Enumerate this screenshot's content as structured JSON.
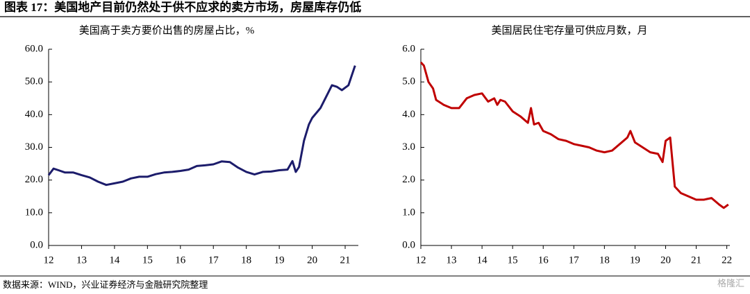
{
  "title": "图表 17：美国地产目前仍然处于供不应求的卖方市场，房屋库存仍低",
  "source": "数据来源：WIND，兴业证券经济与金融研究院整理",
  "watermark": "格隆汇",
  "chart_data": [
    {
      "type": "line",
      "title": "美国高于卖方要价出售的房屋占比，%",
      "xlim": [
        12,
        21.4
      ],
      "xticks": [
        12,
        13,
        14,
        15,
        16,
        17,
        18,
        19,
        20,
        21
      ],
      "ylim": [
        0,
        60
      ],
      "yticks": [
        {
          "value": 0,
          "label": "0.0"
        },
        {
          "value": 10,
          "label": "10.0"
        },
        {
          "value": 20,
          "label": "20.0"
        },
        {
          "value": 30,
          "label": "30.0"
        },
        {
          "value": 40,
          "label": "40.0"
        },
        {
          "value": 50,
          "label": "50.0"
        },
        {
          "value": 60,
          "label": "60.0"
        }
      ],
      "x": [
        12.0,
        12.15,
        12.3,
        12.5,
        12.75,
        13.0,
        13.25,
        13.5,
        13.75,
        14.0,
        14.25,
        14.5,
        14.75,
        15.0,
        15.25,
        15.5,
        15.75,
        16.0,
        16.25,
        16.5,
        16.75,
        17.0,
        17.25,
        17.5,
        17.75,
        18.0,
        18.25,
        18.5,
        18.75,
        19.0,
        19.25,
        19.4,
        19.5,
        19.6,
        19.75,
        19.9,
        20.0,
        20.25,
        20.5,
        20.6,
        20.75,
        20.9,
        21.1,
        21.3
      ],
      "series": [
        {
          "color": "#1c1c6b",
          "values": [
            21.5,
            23.5,
            23,
            22.3,
            22.3,
            21.5,
            20.8,
            19.5,
            18.5,
            19,
            19.5,
            20.5,
            21,
            21,
            21.8,
            22.3,
            22.5,
            22.8,
            23.2,
            24.3,
            24.5,
            24.8,
            25.7,
            25.5,
            23.8,
            22.5,
            21.7,
            22.5,
            22.6,
            23,
            23.2,
            25.8,
            22.5,
            24,
            32,
            37,
            39,
            42,
            47,
            49,
            48.5,
            47.5,
            49,
            55
          ]
        }
      ]
    },
    {
      "type": "line",
      "title": "美国居民住宅存量可供应月数，月",
      "xlim": [
        12,
        22.1
      ],
      "xticks": [
        12,
        13,
        14,
        15,
        16,
        17,
        18,
        19,
        20,
        21,
        22
      ],
      "ylim": [
        0,
        6
      ],
      "yticks": [
        {
          "value": 0,
          "label": "0.0"
        },
        {
          "value": 1,
          "label": "1.0"
        },
        {
          "value": 2,
          "label": "2.0"
        },
        {
          "value": 3,
          "label": "3.0"
        },
        {
          "value": 4,
          "label": "4.0"
        },
        {
          "value": 5,
          "label": "5.0"
        },
        {
          "value": 6,
          "label": "6.0"
        }
      ],
      "x": [
        12.0,
        12.1,
        12.25,
        12.4,
        12.5,
        12.75,
        13.0,
        13.25,
        13.5,
        13.75,
        14.0,
        14.2,
        14.4,
        14.5,
        14.6,
        14.75,
        15.0,
        15.25,
        15.5,
        15.6,
        15.7,
        15.85,
        16.0,
        16.25,
        16.5,
        16.75,
        17.0,
        17.25,
        17.5,
        17.75,
        18.0,
        18.25,
        18.5,
        18.75,
        18.85,
        19.0,
        19.25,
        19.5,
        19.75,
        19.9,
        20.0,
        20.15,
        20.3,
        20.5,
        20.75,
        21.0,
        21.25,
        21.5,
        21.75,
        21.9,
        22.05
      ],
      "series": [
        {
          "color": "#c00000",
          "values": [
            5.6,
            5.5,
            5.0,
            4.8,
            4.45,
            4.3,
            4.2,
            4.2,
            4.5,
            4.6,
            4.65,
            4.4,
            4.5,
            4.3,
            4.45,
            4.4,
            4.1,
            3.95,
            3.75,
            4.2,
            3.7,
            3.75,
            3.5,
            3.4,
            3.25,
            3.2,
            3.1,
            3.05,
            3.0,
            2.9,
            2.85,
            2.9,
            3.1,
            3.3,
            3.5,
            3.15,
            3.0,
            2.85,
            2.8,
            2.55,
            3.2,
            3.3,
            1.8,
            1.6,
            1.5,
            1.4,
            1.4,
            1.45,
            1.25,
            1.15,
            1.25
          ]
        }
      ]
    }
  ]
}
